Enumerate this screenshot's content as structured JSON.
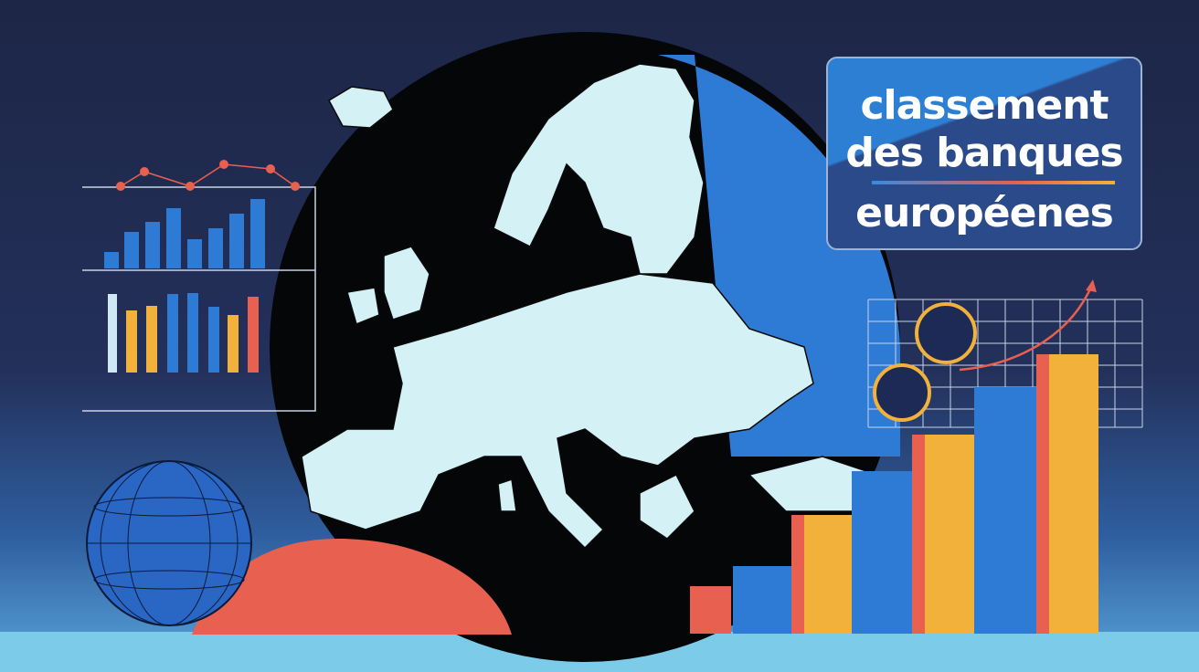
{
  "title": {
    "line1": "classement",
    "line2": "des banques",
    "line3": "européenes"
  },
  "colors": {
    "background": "#1d2647",
    "map_land": "#d4f1f6",
    "accent_blue": "#2e7bd6",
    "accent_red": "#e8604f",
    "accent_yellow": "#f2b13b"
  }
}
